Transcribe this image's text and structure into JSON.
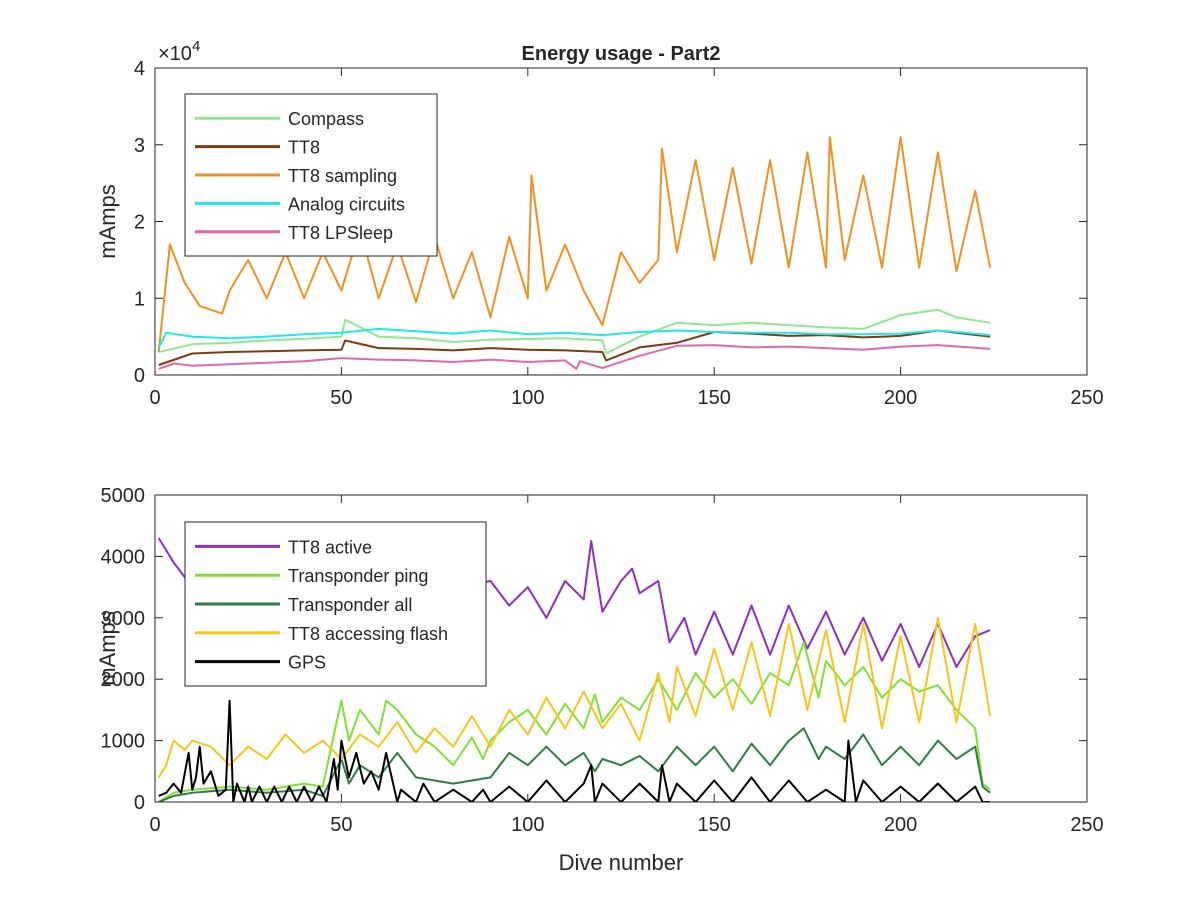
{
  "chart_data": [
    {
      "type": "line",
      "title": "Energy usage - Part2",
      "xlabel": "",
      "ylabel": "mAmps",
      "exponent_label": "×10",
      "exponent_power": "4",
      "xlim": [
        0,
        250
      ],
      "ylim": [
        0,
        40000
      ],
      "xticks": [
        "0",
        "50",
        "100",
        "150",
        "200",
        "250"
      ],
      "yticks": [
        "0",
        "1",
        "2",
        "3",
        "4"
      ],
      "xtick_values": [
        0,
        50,
        100,
        150,
        200,
        250
      ],
      "ytick_values": [
        0,
        10000,
        20000,
        30000,
        40000
      ],
      "grid": false,
      "legend_position": "top-left",
      "series": [
        {
          "name": "Compass",
          "color": "#8fe88f",
          "x": [
            1,
            10,
            20,
            30,
            40,
            50,
            51,
            60,
            70,
            80,
            90,
            100,
            110,
            120,
            121,
            130,
            140,
            150,
            160,
            170,
            180,
            190,
            200,
            210,
            215,
            224
          ],
          "y": [
            3000,
            4000,
            4200,
            4500,
            4700,
            5000,
            7200,
            5000,
            4800,
            4300,
            4600,
            4700,
            4800,
            4500,
            2800,
            5000,
            6800,
            6500,
            6800,
            6500,
            6200,
            6000,
            7800,
            8500,
            7500,
            6800
          ]
        },
        {
          "name": "TT8",
          "color": "#7a3b10",
          "x": [
            1,
            10,
            20,
            30,
            40,
            50,
            51,
            60,
            70,
            80,
            90,
            100,
            110,
            120,
            121,
            130,
            140,
            150,
            160,
            170,
            180,
            190,
            200,
            210,
            215,
            224
          ],
          "y": [
            1300,
            2800,
            3000,
            3100,
            3200,
            3300,
            4500,
            3500,
            3400,
            3200,
            3500,
            3300,
            3200,
            3000,
            1900,
            3600,
            4200,
            5600,
            5400,
            5100,
            5200,
            4900,
            5100,
            5800,
            5500,
            5000
          ]
        },
        {
          "name": "TT8 sampling",
          "color": "#f0901e",
          "x": [
            1,
            4,
            8,
            12,
            18,
            20,
            25,
            30,
            35,
            40,
            45,
            50,
            55,
            60,
            65,
            70,
            75,
            80,
            85,
            90,
            95,
            100,
            101,
            105,
            110,
            115,
            120,
            125,
            130,
            135,
            136,
            140,
            145,
            150,
            155,
            160,
            165,
            170,
            175,
            180,
            181,
            185,
            190,
            195,
            200,
            205,
            210,
            215,
            220,
            224
          ],
          "y": [
            3000,
            17000,
            12000,
            9000,
            8000,
            11000,
            15000,
            10000,
            16000,
            10000,
            16000,
            11000,
            19000,
            10000,
            17000,
            9500,
            18000,
            10000,
            16000,
            7500,
            18000,
            10000,
            26000,
            11000,
            17000,
            11000,
            6500,
            16000,
            12000,
            15000,
            29500,
            16000,
            28000,
            15000,
            27000,
            14500,
            28000,
            14000,
            29000,
            14000,
            31000,
            15000,
            26000,
            14000,
            31000,
            14000,
            29000,
            13500,
            24000,
            14000
          ]
        },
        {
          "name": "Analog circuits",
          "color": "#1ee8e8",
          "x": [
            1,
            3,
            10,
            20,
            30,
            40,
            50,
            60,
            70,
            80,
            90,
            100,
            110,
            120,
            130,
            140,
            150,
            160,
            170,
            180,
            190,
            200,
            210,
            215,
            224
          ],
          "y": [
            3500,
            5500,
            5000,
            4800,
            5000,
            5300,
            5500,
            6000,
            5700,
            5400,
            5800,
            5300,
            5500,
            5200,
            5600,
            5800,
            5600,
            5500,
            5500,
            5300,
            5300,
            5400,
            5800,
            5600,
            5200
          ]
        },
        {
          "name": "TT8 LPSleep",
          "color": "#e266ab",
          "x": [
            1,
            5,
            10,
            20,
            30,
            40,
            50,
            60,
            70,
            80,
            90,
            100,
            110,
            113,
            114,
            120,
            130,
            140,
            150,
            160,
            170,
            180,
            190,
            200,
            210,
            224
          ],
          "y": [
            800,
            1500,
            1200,
            1400,
            1600,
            1800,
            2200,
            2000,
            1900,
            1700,
            2000,
            1700,
            1900,
            800,
            1800,
            900,
            2500,
            3800,
            3900,
            3600,
            3700,
            3500,
            3300,
            3700,
            3900,
            3400
          ]
        }
      ]
    },
    {
      "type": "line",
      "title": "",
      "xlabel": "Dive number",
      "ylabel": "mAmps",
      "xlim": [
        0,
        250
      ],
      "ylim": [
        0,
        5000
      ],
      "xticks": [
        "0",
        "50",
        "100",
        "150",
        "200",
        "250"
      ],
      "yticks": [
        "0",
        "1000",
        "2000",
        "3000",
        "4000",
        "5000"
      ],
      "xtick_values": [
        0,
        50,
        100,
        150,
        200,
        250
      ],
      "ytick_values": [
        0,
        1000,
        2000,
        3000,
        4000,
        5000
      ],
      "grid": false,
      "legend_position": "top-left",
      "series": [
        {
          "name": "TT8 active",
          "color": "#8c2fbf",
          "x": [
            1,
            5,
            10,
            15,
            20,
            25,
            30,
            35,
            40,
            45,
            50,
            60,
            70,
            80,
            90,
            95,
            100,
            105,
            110,
            115,
            117,
            120,
            125,
            128,
            130,
            135,
            138,
            142,
            145,
            150,
            155,
            160,
            165,
            170,
            175,
            180,
            185,
            190,
            195,
            200,
            205,
            210,
            215,
            220,
            224
          ],
          "y": [
            4300,
            3900,
            3500,
            3300,
            3400,
            3200,
            3600,
            3300,
            3500,
            3400,
            3600,
            3500,
            3400,
            3500,
            3600,
            3200,
            3500,
            3000,
            3600,
            3300,
            4250,
            3100,
            3600,
            3800,
            3400,
            3600,
            2600,
            3000,
            2400,
            3100,
            2400,
            3200,
            2400,
            3200,
            2500,
            3100,
            2400,
            3000,
            2300,
            2900,
            2200,
            2900,
            2200,
            2700,
            2800
          ]
        },
        {
          "name": "Transponder ping",
          "color": "#80e030",
          "x": [
            1,
            5,
            10,
            20,
            30,
            40,
            45,
            48,
            50,
            52,
            55,
            60,
            62,
            65,
            70,
            75,
            80,
            85,
            88,
            90,
            95,
            100,
            105,
            110,
            115,
            118,
            120,
            125,
            130,
            135,
            140,
            145,
            150,
            155,
            160,
            165,
            170,
            174,
            178,
            180,
            185,
            190,
            195,
            200,
            205,
            210,
            215,
            220,
            222,
            224
          ],
          "y": [
            0,
            150,
            200,
            250,
            200,
            300,
            250,
            1100,
            1650,
            1000,
            1500,
            1100,
            1650,
            1500,
            1100,
            900,
            600,
            1050,
            700,
            1000,
            1300,
            1500,
            1100,
            1600,
            1200,
            1750,
            1300,
            1700,
            1500,
            2000,
            1500,
            2100,
            1700,
            2000,
            1600,
            2100,
            1900,
            2600,
            1700,
            2300,
            1900,
            2200,
            1700,
            2000,
            1800,
            1900,
            1500,
            1200,
            300,
            200
          ]
        },
        {
          "name": "Transponder all",
          "color": "#2e7d44",
          "x": [
            1,
            5,
            10,
            20,
            30,
            40,
            45,
            50,
            52,
            55,
            60,
            65,
            70,
            80,
            90,
            95,
            100,
            105,
            110,
            115,
            118,
            120,
            125,
            130,
            135,
            140,
            145,
            150,
            155,
            160,
            165,
            170,
            174,
            178,
            180,
            185,
            190,
            195,
            200,
            205,
            210,
            215,
            220,
            222,
            224
          ],
          "y": [
            0,
            100,
            150,
            200,
            150,
            200,
            100,
            700,
            300,
            600,
            400,
            800,
            400,
            300,
            400,
            800,
            600,
            900,
            600,
            800,
            500,
            700,
            600,
            750,
            500,
            900,
            600,
            900,
            500,
            950,
            600,
            1000,
            1200,
            700,
            900,
            700,
            1100,
            600,
            900,
            600,
            1000,
            700,
            900,
            250,
            150
          ]
        },
        {
          "name": "TT8 accessing flash",
          "color": "#f5c518",
          "x": [
            1,
            3,
            5,
            8,
            10,
            15,
            20,
            25,
            30,
            35,
            40,
            45,
            50,
            55,
            60,
            65,
            70,
            75,
            80,
            85,
            90,
            95,
            100,
            105,
            110,
            115,
            120,
            125,
            130,
            135,
            138,
            140,
            145,
            150,
            155,
            160,
            165,
            170,
            175,
            180,
            185,
            190,
            195,
            200,
            205,
            210,
            215,
            220,
            224
          ],
          "y": [
            400,
            600,
            1000,
            850,
            1000,
            900,
            600,
            900,
            700,
            1100,
            800,
            1000,
            700,
            1100,
            900,
            1300,
            800,
            1200,
            900,
            1400,
            900,
            1500,
            1100,
            1700,
            1200,
            1800,
            1200,
            1600,
            1000,
            2100,
            1300,
            2200,
            1400,
            2500,
            1500,
            2600,
            1400,
            2900,
            1500,
            2800,
            1300,
            2900,
            1200,
            2700,
            1300,
            3000,
            1300,
            2900,
            1400
          ]
        },
        {
          "name": "GPS",
          "color": "#000000",
          "x": [
            1,
            3,
            5,
            7,
            9,
            10,
            11,
            12,
            13,
            15,
            17,
            19,
            20,
            21,
            22,
            24,
            25,
            26,
            28,
            30,
            32,
            34,
            36,
            38,
            40,
            42,
            44,
            46,
            48,
            49,
            50,
            52,
            54,
            56,
            58,
            60,
            62,
            65,
            66,
            70,
            72,
            75,
            80,
            85,
            88,
            90,
            95,
            100,
            105,
            110,
            115,
            117,
            118,
            120,
            125,
            130,
            135,
            136,
            138,
            140,
            145,
            150,
            155,
            160,
            165,
            170,
            175,
            180,
            185,
            186,
            188,
            190,
            195,
            200,
            205,
            210,
            215,
            220,
            222,
            224
          ],
          "y": [
            100,
            150,
            300,
            150,
            800,
            200,
            400,
            900,
            300,
            500,
            100,
            200,
            1650,
            0,
            300,
            0,
            250,
            0,
            250,
            0,
            250,
            0,
            250,
            0,
            250,
            0,
            250,
            0,
            700,
            200,
            1000,
            400,
            800,
            300,
            500,
            200,
            800,
            0,
            200,
            0,
            300,
            0,
            200,
            0,
            200,
            0,
            250,
            0,
            350,
            0,
            300,
            600,
            0,
            300,
            0,
            300,
            0,
            600,
            0,
            300,
            0,
            350,
            0,
            400,
            0,
            350,
            0,
            200,
            0,
            1000,
            0,
            350,
            0,
            250,
            0,
            300,
            0,
            250,
            0,
            0
          ]
        }
      ]
    }
  ]
}
